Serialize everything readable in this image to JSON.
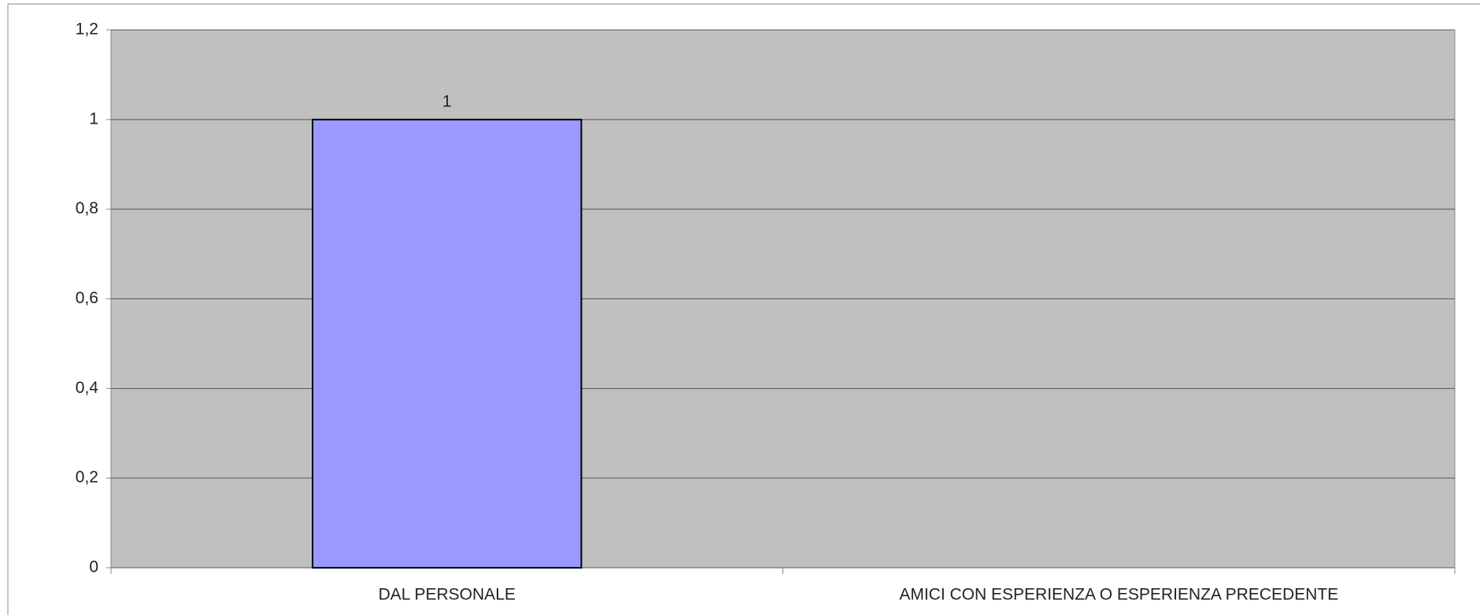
{
  "chart_data": {
    "type": "bar",
    "categories": [
      "DAL PERSONALE",
      "AMICI CON ESPERIENZA O ESPERIENZA PRECEDENTE"
    ],
    "values": [
      1,
      null
    ],
    "color": "#9999ff",
    "ylim": [
      0,
      1.2
    ],
    "yticks": [
      0,
      {
        "value": 0.2,
        "label": "0,2"
      },
      {
        "value": 0.4,
        "label": "0,4"
      },
      {
        "value": 0.6,
        "label": "0,6"
      },
      {
        "value": 0.8,
        "label": "0,8"
      },
      1,
      {
        "value": 1.2,
        "label": "1,2"
      }
    ],
    "grid": true
  }
}
